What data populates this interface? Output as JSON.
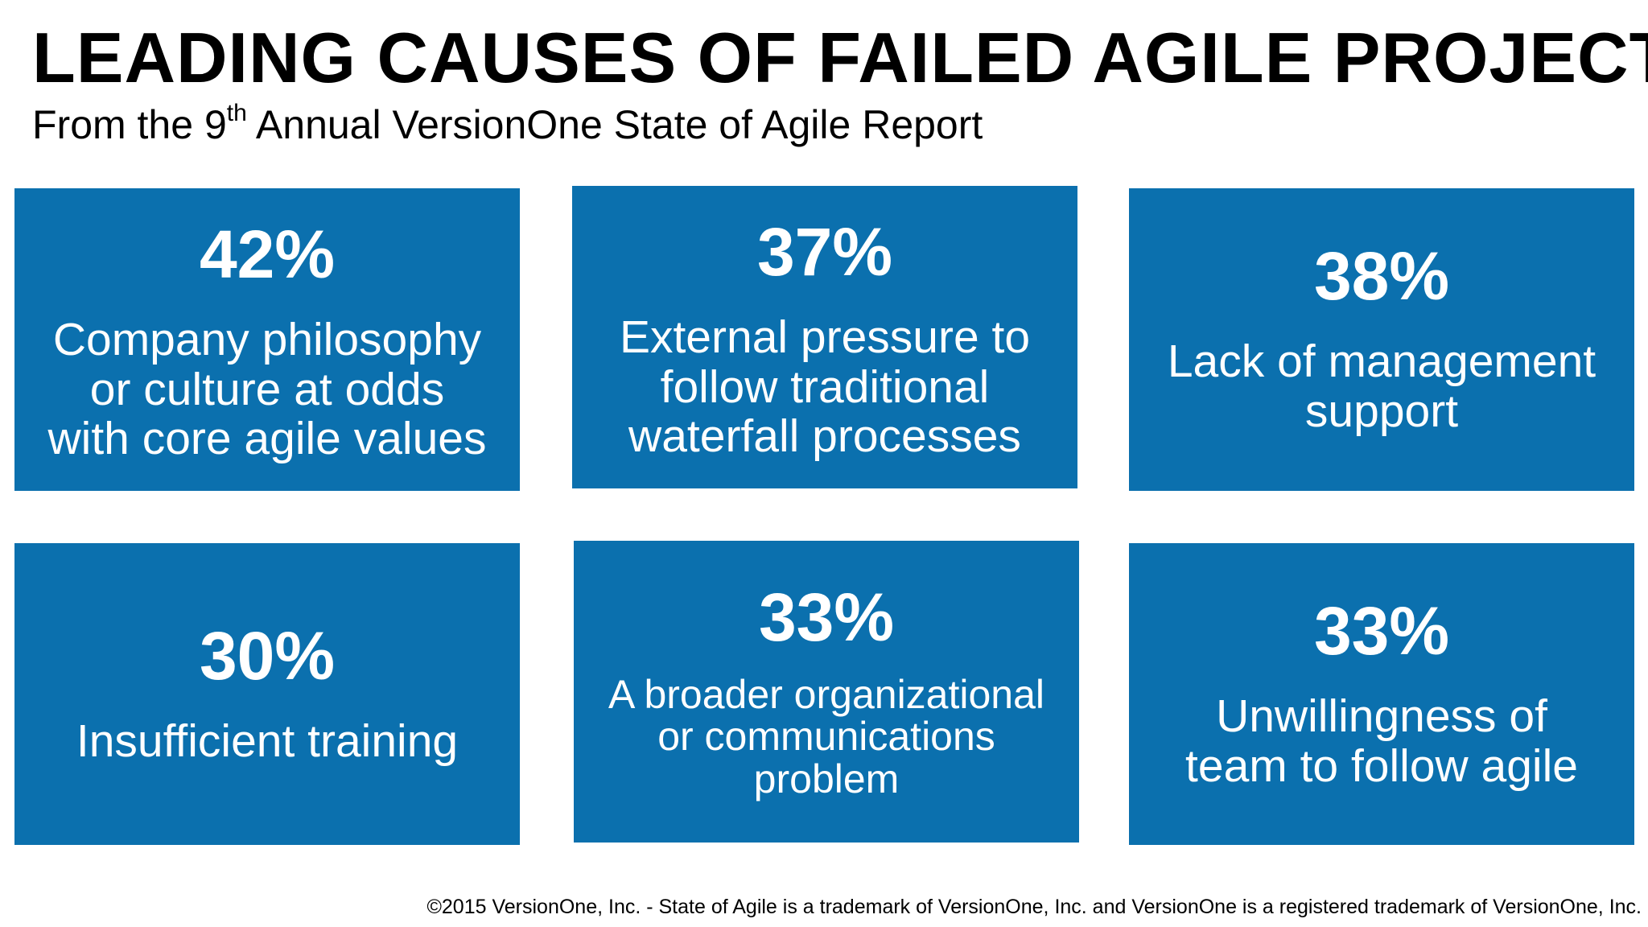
{
  "header": {
    "title": "LEADING CAUSES OF FAILED AGILE PROJECTS",
    "subtitle_prefix": "From the 9",
    "subtitle_sup": "th",
    "subtitle_suffix": " Annual VersionOne State of Agile Report"
  },
  "colors": {
    "card_background": "#0b70ae",
    "card_text": "#ffffff",
    "page_background": "#ffffff",
    "text": "#000000"
  },
  "causes": [
    {
      "percent": "42%",
      "lines": [
        "Company philosophy",
        "or culture at odds",
        "with core agile values"
      ]
    },
    {
      "percent": "37%",
      "lines": [
        "External pressure to",
        "follow traditional",
        "waterfall processes"
      ]
    },
    {
      "percent": "38%",
      "lines": [
        "Lack of management",
        "support"
      ]
    },
    {
      "percent": "30%",
      "lines": [
        "Insufficient training"
      ]
    },
    {
      "percent": "33%",
      "lines": [
        "A broader organizational",
        "or communications",
        "problem"
      ]
    },
    {
      "percent": "33%",
      "lines": [
        "Unwillingness of",
        "team to follow agile"
      ]
    }
  ],
  "footer": {
    "copyright": "©2015 VersionOne, Inc. - State of Agile is a trademark of VersionOne, Inc. and VersionOne is a registered trademark of VersionOne, Inc."
  }
}
